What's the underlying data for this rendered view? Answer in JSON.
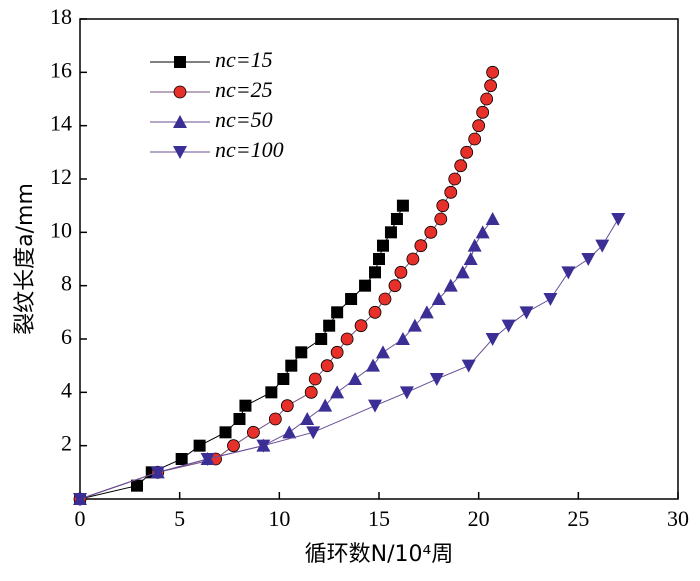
{
  "chart_data": {
    "type": "line",
    "xlabel": "循环数N/10⁴周",
    "ylabel": "裂纹长度a/mm",
    "xlim": [
      0,
      30
    ],
    "xticks": [
      0,
      5,
      10,
      15,
      20,
      25,
      30
    ],
    "ylim": [
      0,
      18
    ],
    "yticks": [
      2,
      4,
      6,
      8,
      10,
      12,
      14,
      16,
      18
    ],
    "legend": "upper left",
    "series": [
      {
        "name": "nc=15",
        "color": "#000000",
        "line_color": "#000000",
        "marker": "square",
        "x": [
          0,
          2.86,
          3.6,
          5.1,
          6.0,
          7.3,
          8.0,
          8.3,
          9.6,
          10.2,
          10.6,
          11.1,
          12.1,
          12.5,
          12.9,
          13.6,
          14.3,
          14.8,
          15.0,
          15.2,
          15.6,
          15.9,
          16.2
        ],
        "values": [
          0,
          0.5,
          1,
          1.5,
          2,
          2.5,
          3,
          3.5,
          4,
          4.5,
          5,
          5.5,
          6,
          6.5,
          7,
          7.5,
          8,
          8.5,
          9,
          9.5,
          10,
          10.5,
          11
        ]
      },
      {
        "name": "nc=25",
        "color": "#e8302a",
        "line_color": "#7a4f7a",
        "marker": "circle",
        "x": [
          0,
          3.9,
          6.8,
          7.7,
          8.7,
          9.8,
          10.4,
          11.6,
          11.8,
          12.4,
          12.9,
          13.4,
          14.1,
          14.8,
          15.3,
          15.8,
          16.1,
          16.7,
          17.1,
          17.6,
          18.1,
          18.2,
          18.6,
          18.8,
          19.1,
          19.4,
          19.8,
          20.0,
          20.2,
          20.4,
          20.6,
          20.7
        ],
        "values": [
          0,
          1,
          1.5,
          2,
          2.5,
          3,
          3.5,
          4,
          4.5,
          5,
          5.5,
          6,
          6.5,
          7,
          7.5,
          8,
          8.5,
          9,
          9.5,
          10,
          10.5,
          11,
          11.5,
          12,
          12.5,
          13,
          13.5,
          14,
          14.5,
          15,
          15.5,
          16
        ]
      },
      {
        "name": "nc=50",
        "color": "#3b2f96",
        "line_color": "#6a4f96",
        "marker": "triangle-up",
        "x": [
          0,
          3.9,
          6.4,
          9.2,
          10.5,
          11.4,
          12.3,
          12.9,
          13.8,
          14.7,
          15.2,
          16.2,
          16.8,
          17.4,
          18.0,
          18.6,
          19.2,
          19.6,
          19.8,
          20.2,
          20.7
        ],
        "values": [
          0,
          1,
          1.5,
          2,
          2.5,
          3,
          3.5,
          4,
          4.5,
          5,
          5.5,
          6,
          6.5,
          7,
          7.5,
          8,
          8.5,
          9,
          9.5,
          10,
          10.5
        ]
      },
      {
        "name": "nc=100",
        "color": "#3b2f96",
        "line_color": "#6a4f96",
        "marker": "triangle-down",
        "x": [
          0,
          3.9,
          6.4,
          9.2,
          11.7,
          14.8,
          16.4,
          17.9,
          19.5,
          20.7,
          21.5,
          22.4,
          23.6,
          24.5,
          25.5,
          26.2,
          27.0
        ],
        "values": [
          0,
          1,
          1.5,
          2,
          2.5,
          3.5,
          4,
          4.5,
          5,
          6,
          6.5,
          7,
          7.5,
          8.5,
          9,
          9.5,
          10.5
        ]
      }
    ]
  }
}
